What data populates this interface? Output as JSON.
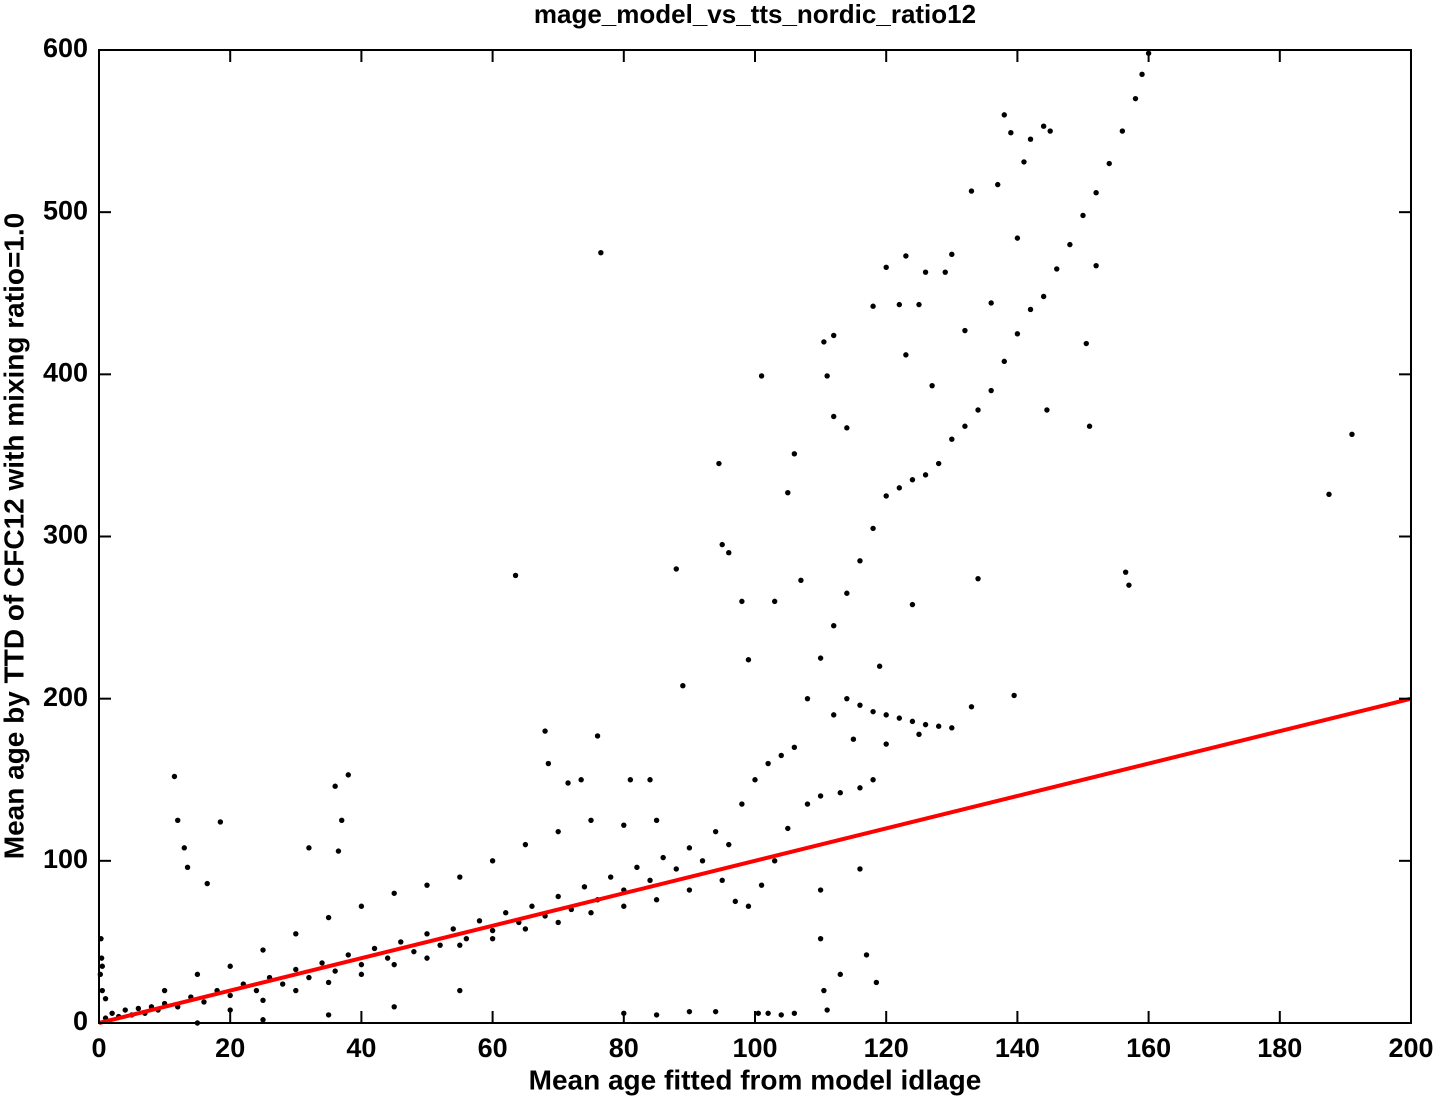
{
  "chart_data": {
    "type": "scatter",
    "title": "mage_model_vs_tts_nordic_ratio12",
    "x_label": "Mean age fitted from model idlage",
    "y_label": "Mean age by TTD of CFC12 with mixing ratio=1.0",
    "xlim": [
      0,
      200
    ],
    "ylim": [
      0,
      600
    ],
    "xticks": [
      0,
      20,
      40,
      60,
      80,
      100,
      120,
      140,
      160,
      180,
      200
    ],
    "yticks": [
      0,
      100,
      200,
      300,
      400,
      500,
      600
    ],
    "grid": false,
    "series": [
      {
        "type": "scatter",
        "color": "#000000",
        "x": [
          76.5,
          63.5,
          88,
          94.5,
          95,
          96,
          101,
          106,
          105,
          110.5,
          111,
          112,
          112,
          114,
          118,
          120,
          122,
          123,
          125,
          126,
          127,
          129,
          130,
          132,
          133,
          134,
          136,
          137,
          138,
          139,
          140,
          141,
          142,
          144,
          145,
          144.5,
          150.5,
          152,
          151,
          187.5,
          191,
          156.5,
          157,
          139.5,
          133,
          123,
          124,
          119,
          98,
          99,
          103,
          107,
          89,
          81,
          84,
          76,
          68,
          68.5,
          71.5,
          73.5,
          11.5,
          12,
          13,
          13.5,
          16.5,
          18.5,
          36,
          38,
          37,
          32,
          36.5,
          116,
          117,
          118.5,
          113,
          110,
          110.5,
          111,
          100.5,
          102,
          104,
          106,
          90,
          94,
          85,
          80,
          110,
          0.3,
          0.4,
          0.2,
          1,
          2,
          3,
          4,
          5,
          6,
          7,
          8,
          9,
          10,
          12,
          14,
          16,
          18,
          20,
          22,
          24,
          26,
          28,
          30,
          32,
          34,
          36,
          38,
          40,
          42,
          44,
          46,
          48,
          50,
          52,
          54,
          56,
          58,
          60,
          62,
          64,
          66,
          68,
          70,
          72,
          74,
          76,
          78,
          80,
          82,
          84,
          86,
          88,
          90,
          92,
          94,
          96,
          98,
          100,
          102,
          104,
          106,
          108,
          110,
          112,
          114,
          116,
          118,
          120,
          122,
          124,
          126,
          128,
          130,
          132,
          134,
          136,
          138,
          140,
          142,
          144,
          146,
          148,
          150,
          152,
          154,
          156,
          158,
          159,
          160,
          20,
          25,
          30,
          35,
          40,
          45,
          50,
          55,
          60,
          65,
          70,
          75,
          80,
          85,
          90,
          95,
          97,
          99,
          101,
          103,
          105,
          108,
          110,
          113,
          116,
          118,
          10,
          15,
          20,
          25,
          30,
          35,
          40,
          45,
          50,
          55,
          60,
          65,
          70,
          75,
          80,
          85,
          112,
          114,
          116,
          118,
          120,
          122,
          124,
          126,
          128,
          130,
          115,
          120,
          125,
          0.5,
          0.5,
          1,
          15,
          25,
          35,
          45,
          55
        ],
        "values": [
          475,
          276,
          280,
          345,
          295,
          290,
          399,
          351,
          327,
          420,
          399,
          424,
          374,
          367,
          442,
          466,
          443,
          473,
          443,
          463,
          393,
          463,
          474,
          427,
          513,
          274,
          444,
          517,
          560,
          549,
          484,
          531,
          545,
          553,
          550,
          378,
          419,
          467,
          368,
          326,
          363,
          278,
          270,
          202,
          195,
          412,
          258,
          220,
          260,
          224,
          260,
          273,
          208,
          150,
          150,
          177,
          180,
          160,
          148,
          150,
          152,
          125,
          108,
          96,
          86,
          124,
          146,
          153,
          125,
          108,
          106,
          95,
          42,
          25,
          30,
          52,
          20,
          8,
          6,
          6,
          5,
          6,
          7,
          7,
          5,
          6,
          82,
          52,
          40,
          30,
          3,
          6,
          4,
          8,
          5,
          9,
          6,
          10,
          8,
          12,
          10,
          16,
          13,
          20,
          17,
          24,
          20,
          28,
          24,
          33,
          28,
          37,
          32,
          42,
          36,
          46,
          40,
          50,
          44,
          55,
          48,
          58,
          52,
          63,
          57,
          68,
          62,
          72,
          66,
          78,
          70,
          84,
          76,
          90,
          82,
          96,
          88,
          102,
          95,
          108,
          100,
          118,
          110,
          135,
          150,
          160,
          165,
          170,
          200,
          225,
          245,
          265,
          285,
          305,
          325,
          330,
          335,
          338,
          345,
          360,
          368,
          378,
          390,
          408,
          425,
          440,
          448,
          465,
          480,
          498,
          512,
          530,
          550,
          570,
          585,
          598,
          8,
          14,
          20,
          25,
          30,
          36,
          40,
          48,
          52,
          58,
          62,
          68,
          72,
          76,
          82,
          88,
          75,
          72,
          85,
          100,
          120,
          135,
          140,
          142,
          145,
          150,
          20,
          30,
          35,
          45,
          55,
          65,
          72,
          80,
          85,
          90,
          100,
          110,
          118,
          125,
          122,
          125,
          190,
          200,
          196,
          192,
          190,
          188,
          186,
          184,
          183,
          182,
          175,
          172,
          178,
          35,
          20,
          15,
          0,
          2,
          5,
          10,
          20
        ]
      },
      {
        "type": "line",
        "color": "#ff0000",
        "x": [
          0,
          200
        ],
        "values": [
          0,
          200
        ]
      }
    ]
  }
}
